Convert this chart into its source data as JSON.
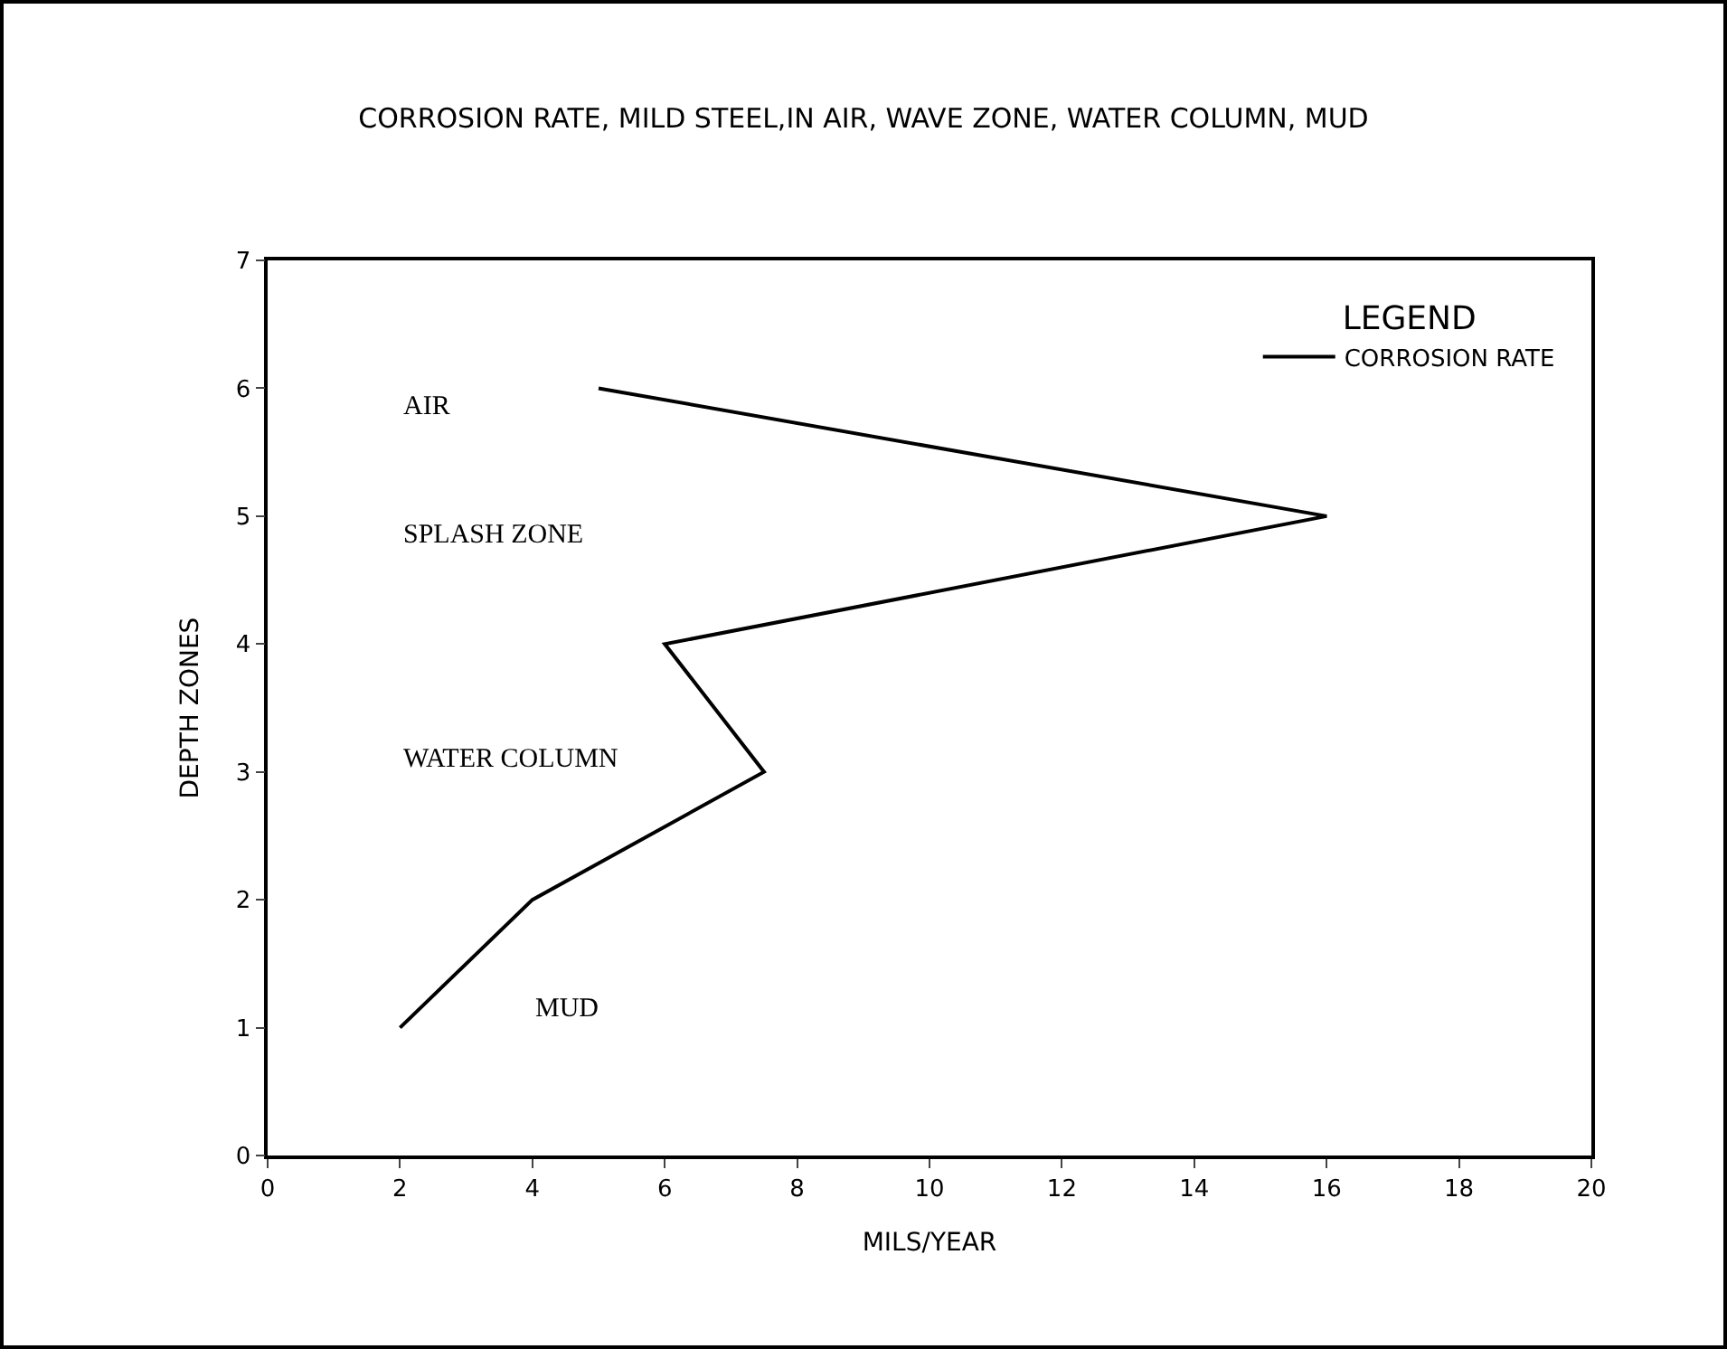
{
  "chart_data": {
    "type": "line",
    "title": "CORROSION RATE, MILD STEEL,IN AIR, WAVE ZONE, WATER COLUMN, MUD",
    "xlabel": "MILS/YEAR",
    "ylabel": "DEPTH ZONES",
    "legend_title": "LEGEND",
    "legend": "top right",
    "grid": false,
    "marker": "none",
    "line_style": "solid",
    "series": [
      {
        "name": "CORROSION RATE",
        "color": "#000000",
        "x": [
          5,
          16,
          6,
          7.5,
          4,
          2
        ],
        "values": [
          6,
          5,
          4,
          3,
          2,
          1
        ]
      }
    ],
    "xlim": [
      0,
      20
    ],
    "xticks": [
      0,
      2,
      4,
      6,
      8,
      10,
      12,
      14,
      16,
      18,
      20
    ],
    "ylim": [
      0,
      7
    ],
    "yticks": [
      0,
      1,
      2,
      3,
      4,
      5,
      6,
      7
    ],
    "annotations": [
      "AIR",
      "SPLASH ZONE",
      "WATER COLUMN",
      "MUD"
    ]
  }
}
